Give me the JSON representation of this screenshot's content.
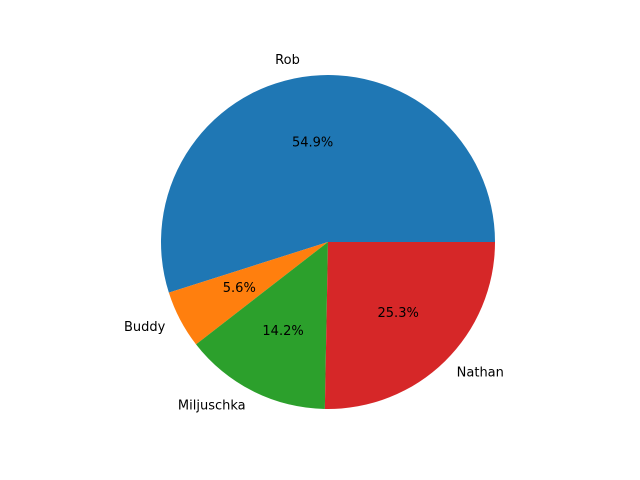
{
  "chart_data": {
    "type": "pie",
    "labels": [
      "Rob",
      "Buddy",
      "Miljuschka",
      "Nathan"
    ],
    "values": [
      54.9,
      5.6,
      14.2,
      25.3
    ],
    "percent_labels": [
      "54.9%",
      "5.6%",
      "14.2%",
      "25.3%"
    ],
    "colors": [
      "#1f77b4",
      "#ff7f0e",
      "#2ca02c",
      "#d62728"
    ],
    "start_angle_deg": 0,
    "direction": "counterclockwise",
    "title": "",
    "legend": "none"
  }
}
